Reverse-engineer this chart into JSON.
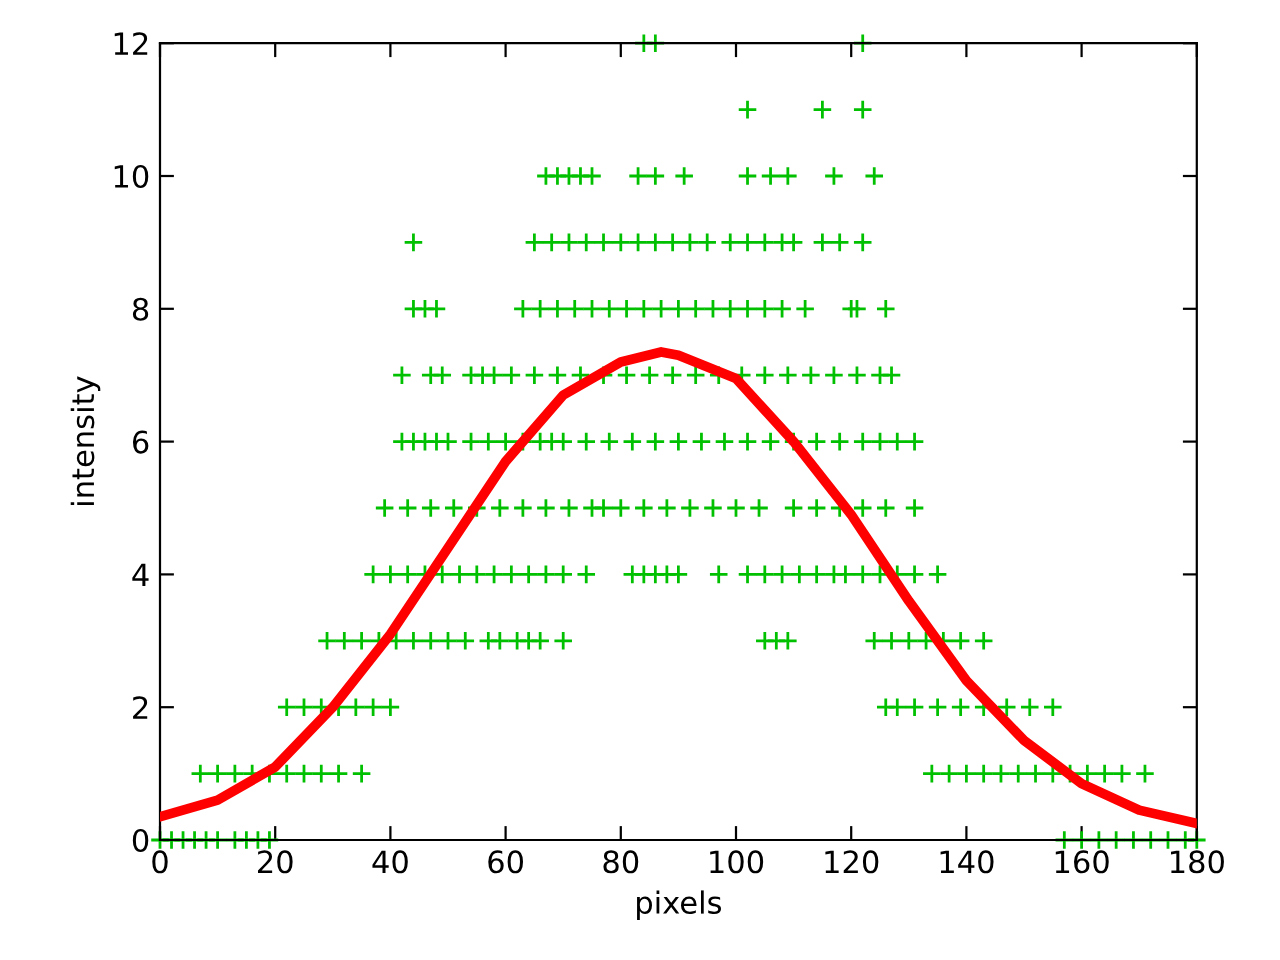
{
  "chart_data": {
    "type": "scatter",
    "xlabel": "pixels",
    "ylabel": "intensity",
    "xlim": [
      0,
      180
    ],
    "ylim": [
      0,
      12
    ],
    "xticks": [
      0,
      20,
      40,
      60,
      80,
      100,
      120,
      140,
      160,
      180
    ],
    "yticks": [
      0,
      2,
      4,
      6,
      8,
      10,
      12
    ],
    "grid": false,
    "legend": false,
    "series": [
      {
        "marker": "cross",
        "color": "#00c000",
        "x": [
          0,
          2,
          4,
          6,
          8,
          10,
          13,
          15,
          17,
          19,
          157,
          160,
          163,
          166,
          169,
          172,
          175,
          178,
          180,
          7,
          10,
          13,
          16,
          19,
          22,
          25,
          28,
          31,
          35,
          134,
          137,
          140,
          143,
          146,
          149,
          152,
          155,
          158,
          161,
          164,
          167,
          171,
          22,
          25,
          28,
          31,
          34,
          37,
          40,
          126,
          128,
          131,
          135,
          139,
          143,
          147,
          151,
          155,
          29,
          32,
          35,
          38,
          41,
          44,
          47,
          50,
          53,
          57,
          59,
          62,
          64,
          66,
          70,
          105,
          107,
          109,
          124,
          127,
          130,
          133,
          136,
          139,
          143,
          37,
          40,
          43,
          46,
          49,
          52,
          55,
          58,
          61,
          64,
          67,
          70,
          74,
          82,
          84,
          86,
          88,
          90,
          97,
          102,
          105,
          108,
          111,
          114,
          117,
          119,
          122,
          125,
          128,
          131,
          135,
          39,
          43,
          47,
          51,
          55,
          59,
          63,
          67,
          71,
          75,
          77,
          80,
          84,
          88,
          92,
          96,
          100,
          104,
          110,
          114,
          118,
          122,
          126,
          131,
          42,
          44,
          46,
          48,
          50,
          54,
          57,
          60,
          63,
          66,
          68,
          70,
          74,
          78,
          82,
          86,
          90,
          94,
          98,
          102,
          106,
          110,
          114,
          118,
          122,
          125,
          128,
          131,
          42,
          47,
          49,
          54,
          56,
          58,
          61,
          65,
          69,
          73,
          77,
          81,
          85,
          89,
          93,
          97,
          101,
          105,
          109,
          113,
          117,
          121,
          125,
          127,
          44,
          46,
          48,
          63,
          66,
          69,
          72,
          75,
          78,
          81,
          84,
          87,
          90,
          93,
          96,
          99,
          102,
          105,
          108,
          112,
          120,
          121,
          126,
          44,
          65,
          68,
          71,
          74,
          77,
          80,
          83,
          86,
          89,
          92,
          95,
          99,
          102,
          105,
          108,
          110,
          115,
          118,
          122,
          67,
          69,
          71,
          73,
          75,
          83,
          86,
          91,
          102,
          106,
          109,
          117,
          124,
          102,
          115,
          122,
          84,
          86,
          122
        ],
        "values": [
          0,
          0,
          0,
          0,
          0,
          0,
          0,
          0,
          0,
          0,
          0,
          0,
          0,
          0,
          0,
          0,
          0,
          0,
          0,
          1,
          1,
          1,
          1,
          1,
          1,
          1,
          1,
          1,
          1,
          1,
          1,
          1,
          1,
          1,
          1,
          1,
          1,
          1,
          1,
          1,
          1,
          1,
          2,
          2,
          2,
          2,
          2,
          2,
          2,
          2,
          2,
          2,
          2,
          2,
          2,
          2,
          2,
          2,
          3,
          3,
          3,
          3,
          3,
          3,
          3,
          3,
          3,
          3,
          3,
          3,
          3,
          3,
          3,
          3,
          3,
          3,
          3,
          3,
          3,
          3,
          3,
          3,
          3,
          4,
          4,
          4,
          4,
          4,
          4,
          4,
          4,
          4,
          4,
          4,
          4,
          4,
          4,
          4,
          4,
          4,
          4,
          4,
          4,
          4,
          4,
          4,
          4,
          4,
          4,
          4,
          4,
          4,
          4,
          4,
          5,
          5,
          5,
          5,
          5,
          5,
          5,
          5,
          5,
          5,
          5,
          5,
          5,
          5,
          5,
          5,
          5,
          5,
          5,
          5,
          5,
          5,
          5,
          5,
          6,
          6,
          6,
          6,
          6,
          6,
          6,
          6,
          6,
          6,
          6,
          6,
          6,
          6,
          6,
          6,
          6,
          6,
          6,
          6,
          6,
          6,
          6,
          6,
          6,
          6,
          6,
          6,
          7,
          7,
          7,
          7,
          7,
          7,
          7,
          7,
          7,
          7,
          7,
          7,
          7,
          7,
          7,
          7,
          7,
          7,
          7,
          7,
          7,
          7,
          7,
          7,
          8,
          8,
          8,
          8,
          8,
          8,
          8,
          8,
          8,
          8,
          8,
          8,
          8,
          8,
          8,
          8,
          8,
          8,
          8,
          8,
          8,
          8,
          8,
          9,
          9,
          9,
          9,
          9,
          9,
          9,
          9,
          9,
          9,
          9,
          9,
          9,
          9,
          9,
          9,
          9,
          9,
          9,
          9,
          10,
          10,
          10,
          10,
          10,
          10,
          10,
          10,
          10,
          10,
          10,
          10,
          10,
          11,
          11,
          11,
          12,
          12,
          12
        ]
      },
      {
        "type": "line",
        "marker": "none",
        "color": "#ff0000",
        "x": [
          0,
          10,
          20,
          30,
          40,
          50,
          60,
          70,
          80,
          87,
          90,
          100,
          110,
          120,
          130,
          140,
          150,
          160,
          170,
          180
        ],
        "values": [
          0.35,
          0.6,
          1.1,
          2.0,
          3.1,
          4.4,
          5.7,
          6.7,
          7.2,
          7.35,
          7.3,
          6.95,
          6.0,
          4.9,
          3.6,
          2.4,
          1.5,
          0.85,
          0.45,
          0.25
        ]
      }
    ]
  }
}
